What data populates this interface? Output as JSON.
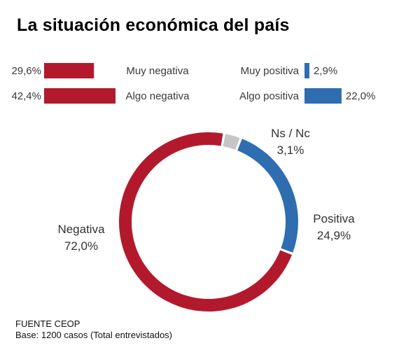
{
  "header": {
    "title": "La situación económica del país"
  },
  "footer": {
    "source": "FUENTE CEOP",
    "base": "Base: 1200 casos (Total entrevistados)"
  },
  "chart_data": [
    {
      "type": "bar",
      "title": "",
      "categories": [
        "Muy negativa",
        "Algo negativa",
        "Muy positiva",
        "Algo positiva"
      ],
      "values": [
        29.6,
        42.4,
        2.9,
        22.0
      ],
      "value_labels": [
        "29,6%",
        "42,4%",
        "2,9%",
        "22,0%"
      ],
      "colors": [
        "#b3192c",
        "#b3192c",
        "#2e6db0",
        "#2e6db0"
      ],
      "orientation": "horizontal",
      "grid": false
    },
    {
      "type": "pie",
      "style": "donut",
      "title": "",
      "categories": [
        "Ns / Nc",
        "Positiva",
        "Negativa"
      ],
      "values": [
        3.1,
        24.9,
        72.0
      ],
      "value_labels": [
        "3,1%",
        "24,9%",
        "72,0%"
      ],
      "colors": [
        "#c6c6c6",
        "#2e6db0",
        "#b3192c"
      ],
      "start": "top",
      "direction": "clockwise"
    }
  ]
}
